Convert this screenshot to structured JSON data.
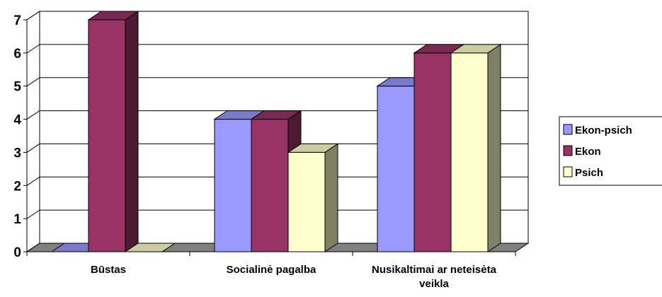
{
  "chart_data": {
    "type": "bar3d",
    "categories": [
      "Būstas",
      "Socialinė pagalba",
      "Nusikaltimai ar neteisėta veikla"
    ],
    "series": [
      {
        "name": "Ekon-psich",
        "color": "#9999ff",
        "values": [
          0,
          4,
          5
        ]
      },
      {
        "name": "Ekon",
        "color": "#993366",
        "values": [
          7,
          4,
          6
        ]
      },
      {
        "name": "Psich",
        "color": "#ffffcc",
        "values": [
          0,
          3,
          6
        ]
      }
    ],
    "ylim": [
      0,
      7
    ],
    "yticks": [
      0,
      1,
      2,
      3,
      4,
      5,
      6,
      7
    ],
    "grid": true,
    "legend": "right"
  }
}
